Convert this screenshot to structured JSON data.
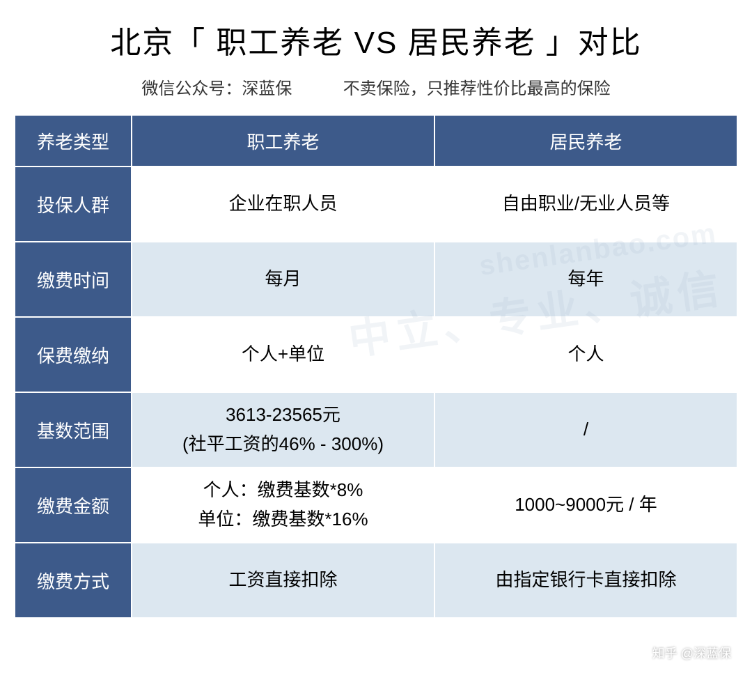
{
  "title": "北京「 职工养老 VS 居民养老 」对比",
  "subtitle_left": "微信公众号：深蓝保",
  "subtitle_right": "不卖保险，只推荐性价比最高的保险",
  "colors": {
    "header_bg": "#3d5a8a",
    "header_text": "#ffffff",
    "row_white": "#ffffff",
    "row_alt": "#dce7f0",
    "border": "#ffffff",
    "body_text": "#000000"
  },
  "table": {
    "columns": [
      "养老类型",
      "职工养老",
      "居民养老"
    ],
    "rows": [
      {
        "label": "投保人群",
        "col1": "企业在职人员",
        "col2": "自由职业/无业人员等",
        "shade": "white"
      },
      {
        "label": "缴费时间",
        "col1": "每月",
        "col2": "每年",
        "shade": "alt"
      },
      {
        "label": "保费缴纳",
        "col1": "个人+单位",
        "col2": "个人",
        "shade": "white"
      },
      {
        "label": "基数范围",
        "col1": "3613-23565元\n(社平工资的46% - 300%)",
        "col2": "/",
        "shade": "alt"
      },
      {
        "label": "缴费金额",
        "col1": "个人：缴费基数*8%\n单位：缴费基数*16%",
        "col2": "1000~9000元 / 年",
        "shade": "white"
      },
      {
        "label": "缴费方式",
        "col1": "工资直接扣除",
        "col2": "由指定银行卡直接扣除",
        "shade": "alt"
      }
    ]
  },
  "watermark_brand": "知乎 @深蓝保",
  "watermark_bg_url": "shenlanbao.com",
  "watermark_bg_text": "中立、专业、诚信"
}
